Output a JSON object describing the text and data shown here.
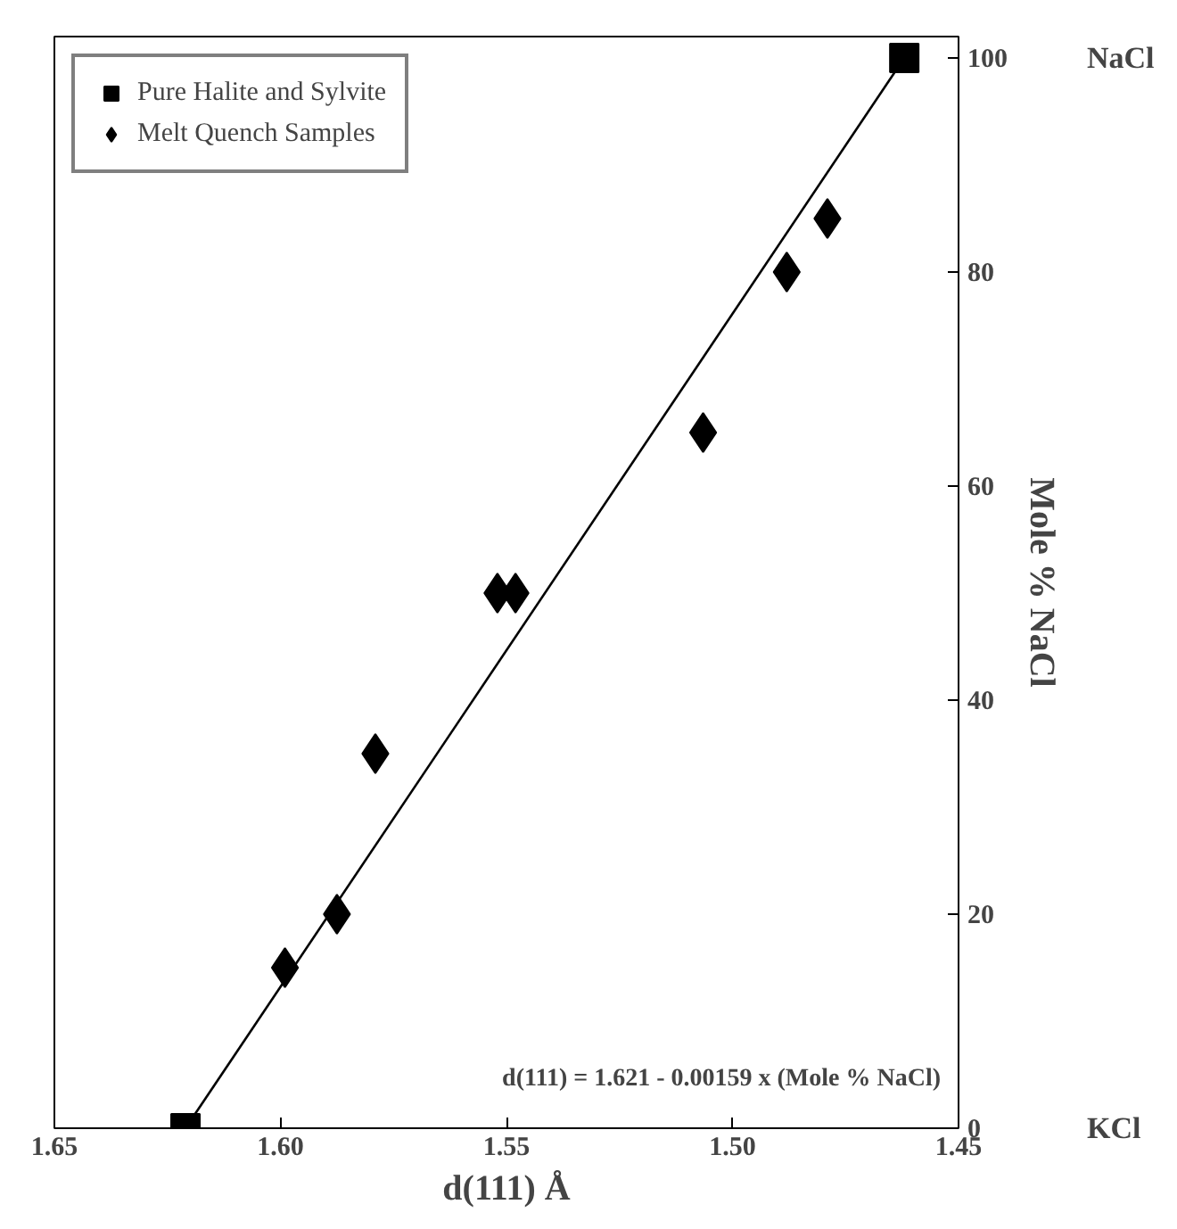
{
  "chart_data": {
    "type": "scatter",
    "xlabel": "d(111) Å",
    "y2label": "Mole % NaCl",
    "xlim": [
      1.65,
      1.45
    ],
    "xticks": [
      1.65,
      {
        "value": 1.6,
        "label": "1.60"
      },
      1.55,
      {
        "value": 1.5,
        "label": "1.50"
      },
      1.45
    ],
    "y2lim": [
      0,
      102
    ],
    "y2ticks": [
      0,
      20,
      40,
      60,
      80,
      100
    ],
    "grid": false,
    "legend": "top left",
    "series": [
      {
        "name": "Pure Halite and Sylvite",
        "marker": "square",
        "color": "#000000",
        "axis": "y2",
        "x": [
          1.621,
          1.462
        ],
        "values": [
          0,
          100
        ]
      },
      {
        "name": "Melt Quench Samples",
        "marker": "diamond",
        "color": "#000000",
        "axis": "y2",
        "x": [
          1.599,
          1.5875,
          1.579,
          1.552,
          1.548,
          1.5065,
          1.488,
          1.479
        ],
        "values": [
          15,
          20,
          35,
          50,
          50,
          65,
          80,
          85
        ]
      },
      {
        "type": "line",
        "line_style": "solid",
        "color": "#000000",
        "axis": "y2",
        "x": [
          1.621,
          1.462
        ],
        "values": [
          0,
          100
        ]
      }
    ],
    "annotations": [
      "KCl",
      "NaCl",
      "d(111) = 1.621 - 0.00159 x (Mole % NaCl)"
    ]
  }
}
